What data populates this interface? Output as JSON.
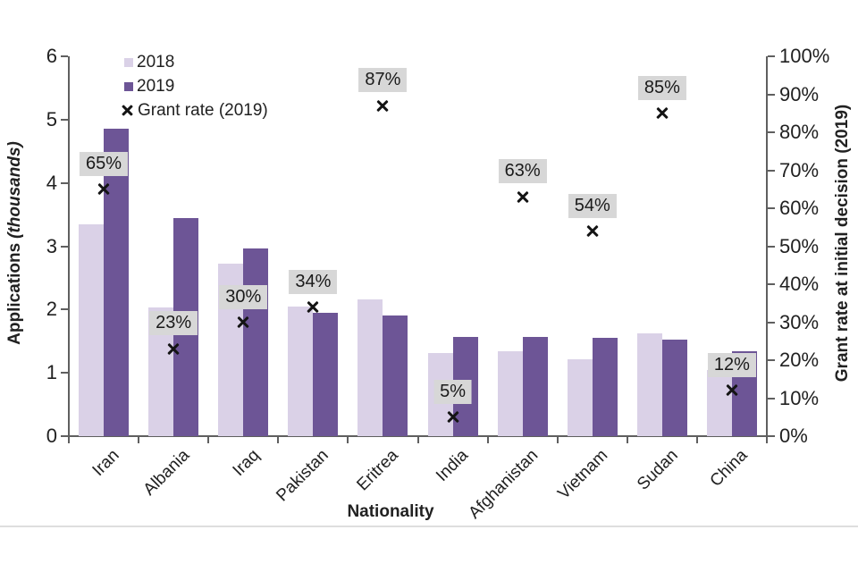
{
  "chart_data": {
    "type": "bar",
    "subtype": "grouped bars with scatter overlay on secondary axis",
    "categories": [
      "Iran",
      "Albania",
      "Iraq",
      "Pakistan",
      "Eritrea",
      "India",
      "Afghanistan",
      "Vietnam",
      "Sudan",
      "China"
    ],
    "series": [
      {
        "name": "2018",
        "type": "bar",
        "axis": "left",
        "color": "#dad1e7",
        "values": [
          3.34,
          2.03,
          2.72,
          2.05,
          2.16,
          1.31,
          1.34,
          1.21,
          1.62,
          1.05
        ]
      },
      {
        "name": "2019",
        "type": "bar",
        "axis": "left",
        "color": "#6d5596",
        "values": [
          4.86,
          3.45,
          2.97,
          1.95,
          1.9,
          1.57,
          1.57,
          1.55,
          1.52,
          1.34
        ]
      },
      {
        "name": "Grant rate (2019)",
        "type": "scatter",
        "marker": "x",
        "axis": "right",
        "marker_color": "#141414",
        "label_bg": "#d7d7d7",
        "values_pct": [
          65,
          23,
          30,
          34,
          87,
          5,
          63,
          54,
          85,
          12
        ],
        "labels": [
          "65%",
          "23%",
          "30%",
          "34%",
          "87%",
          "5%",
          "63%",
          "54%",
          "85%",
          "12%"
        ]
      }
    ],
    "left_axis": {
      "title_main": "Applications",
      "title_note": "(thousands)",
      "min": 0,
      "max": 6,
      "step": 1,
      "tick_labels": [
        "0",
        "1",
        "2",
        "3",
        "4",
        "5",
        "6"
      ]
    },
    "right_axis": {
      "title": "Grant rate at initial decision (2019)",
      "min": 0,
      "max": 100,
      "step": 10,
      "suffix": "%",
      "tick_labels": [
        "0%",
        "10%",
        "20%",
        "30%",
        "40%",
        "50%",
        "60%",
        "70%",
        "80%",
        "90%",
        "100%"
      ]
    },
    "xlabel": "Nationality",
    "legend": {
      "position": "top-left-inside",
      "items": [
        "2018",
        "2019",
        "Grant rate (2019)"
      ]
    },
    "grid": false
  },
  "colors": {
    "bar_2018": "#dad1e7",
    "bar_2019": "#6d5596",
    "grant_label_bg": "#d7d7d7",
    "marker": "#141414",
    "axis": "#5f5f5f",
    "text": "#212121",
    "divider": "#dedede",
    "background": "#ffffff"
  }
}
